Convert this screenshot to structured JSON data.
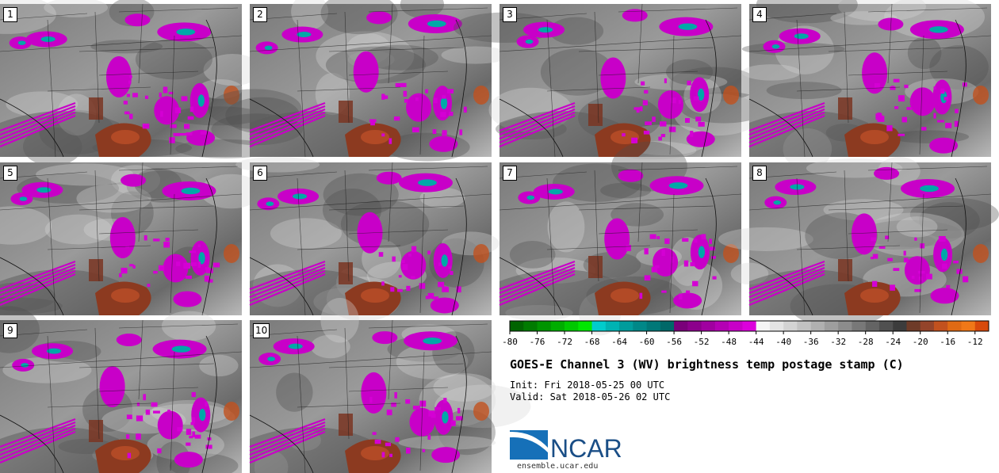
{
  "stamps": [
    {
      "label": "1"
    },
    {
      "label": "2"
    },
    {
      "label": "3"
    },
    {
      "label": "4"
    },
    {
      "label": "5"
    },
    {
      "label": "6"
    },
    {
      "label": "7"
    },
    {
      "label": "8"
    },
    {
      "label": "9"
    },
    {
      "label": "10"
    }
  ],
  "chart_data": {
    "type": "heatmap",
    "title": "GOES-E Channel 3 (WV) brightness temp postage stamp (C)",
    "init_text": "Init: Fri 2018-05-25 00 UTC",
    "valid_text": "Valid: Sat 2018-05-26 02 UTC",
    "colorbar": {
      "min": -80,
      "max": -10,
      "tick_labels": [
        "-80",
        "-76",
        "-72",
        "-68",
        "-64",
        "-60",
        "-56",
        "-52",
        "-48",
        "-44",
        "-40",
        "-36",
        "-32",
        "-28",
        "-24",
        "-20",
        "-16",
        "-12"
      ],
      "tick_values": [
        -80,
        -76,
        -72,
        -68,
        -64,
        -60,
        -56,
        -52,
        -48,
        -44,
        -40,
        -36,
        -32,
        -28,
        -24,
        -20,
        -16,
        -12
      ],
      "bins": [
        {
          "from": -80,
          "to": -78,
          "color": "#006400"
        },
        {
          "from": -78,
          "to": -76,
          "color": "#007b00"
        },
        {
          "from": -76,
          "to": -74,
          "color": "#009400"
        },
        {
          "from": -74,
          "to": -72,
          "color": "#00ad00"
        },
        {
          "from": -72,
          "to": -70,
          "color": "#00c800"
        },
        {
          "from": -70,
          "to": -68,
          "color": "#00e600"
        },
        {
          "from": -68,
          "to": -66,
          "color": "#00cccc"
        },
        {
          "from": -66,
          "to": -64,
          "color": "#00b3b3"
        },
        {
          "from": -64,
          "to": -62,
          "color": "#009c9c"
        },
        {
          "from": -62,
          "to": -60,
          "color": "#008888"
        },
        {
          "from": -60,
          "to": -58,
          "color": "#007878"
        },
        {
          "from": -58,
          "to": -56,
          "color": "#006868"
        },
        {
          "from": -56,
          "to": -54,
          "color": "#7a007a"
        },
        {
          "from": -54,
          "to": -52,
          "color": "#8c008c"
        },
        {
          "from": -52,
          "to": -50,
          "color": "#a000a0"
        },
        {
          "from": -50,
          "to": -48,
          "color": "#b400b4"
        },
        {
          "from": -48,
          "to": -46,
          "color": "#c800c8"
        },
        {
          "from": -46,
          "to": -44,
          "color": "#dc00dc"
        },
        {
          "from": -44,
          "to": -42,
          "color": "#f5f5f5"
        },
        {
          "from": -42,
          "to": -40,
          "color": "#e4e4e4"
        },
        {
          "from": -40,
          "to": -38,
          "color": "#d3d3d3"
        },
        {
          "from": -38,
          "to": -36,
          "color": "#c2c2c2"
        },
        {
          "from": -36,
          "to": -34,
          "color": "#b0b0b0"
        },
        {
          "from": -34,
          "to": -32,
          "color": "#9e9e9e"
        },
        {
          "from": -32,
          "to": -30,
          "color": "#8c8c8c"
        },
        {
          "from": -30,
          "to": -28,
          "color": "#787878"
        },
        {
          "from": -28,
          "to": -26,
          "color": "#646464"
        },
        {
          "from": -26,
          "to": -24,
          "color": "#505050"
        },
        {
          "from": -24,
          "to": -22,
          "color": "#3c3c3c"
        },
        {
          "from": -22,
          "to": -20,
          "color": "#6e3b28"
        },
        {
          "from": -20,
          "to": -18,
          "color": "#94442a"
        },
        {
          "from": -18,
          "to": -16,
          "color": "#c2511e"
        },
        {
          "from": -16,
          "to": -14,
          "color": "#e06a14"
        },
        {
          "from": -14,
          "to": -12,
          "color": "#f07818"
        },
        {
          "from": -12,
          "to": -10,
          "color": "#d84a0c"
        }
      ]
    }
  },
  "logo": {
    "text": "NCAR",
    "color": "#1a4e86"
  },
  "footer": {
    "site": "ensemble.ucar.edu"
  }
}
